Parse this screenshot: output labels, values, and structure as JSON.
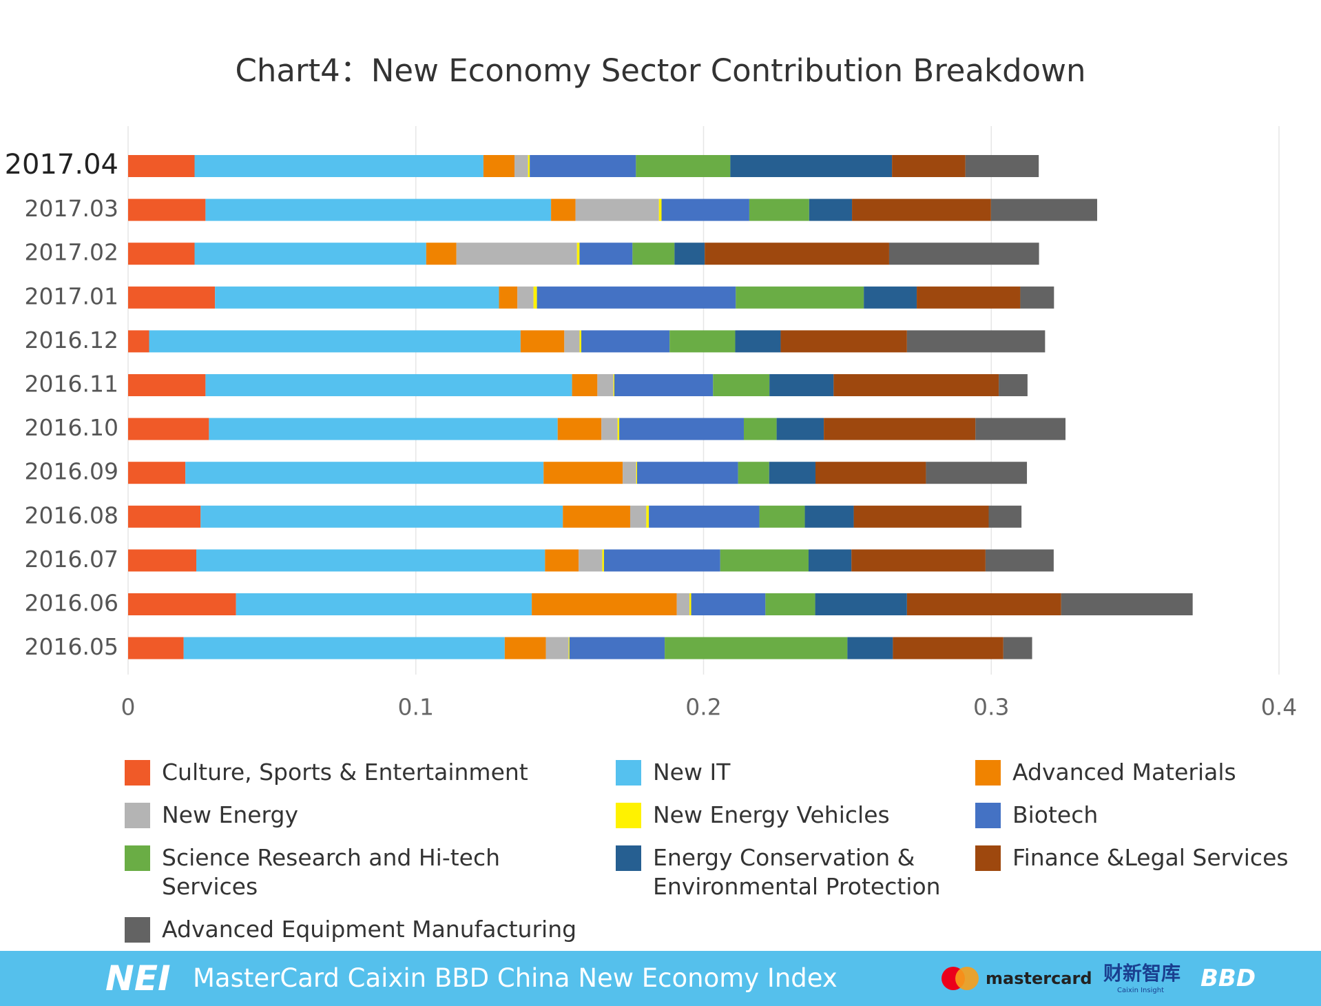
{
  "chart_data": {
    "type": "bar",
    "orientation": "horizontal",
    "stacked": true,
    "title": "Chart4：New Economy Sector Contribution Breakdown",
    "categories": [
      "2017.04",
      "2017.03",
      "2017.02",
      "2017.01",
      "2016.12",
      "2016.11",
      "2016.10",
      "2016.09",
      "2016.08",
      "2016.07",
      "2016.06",
      "2016.05"
    ],
    "xlim": [
      0,
      0.4
    ],
    "xticks": [
      0,
      0.1,
      0.2,
      0.3,
      0.4
    ],
    "grid": true,
    "series": [
      {
        "name": "Culture, Sports & Entertainment",
        "color": "#f05a28",
        "values": [
          0.0231,
          0.0269,
          0.0231,
          0.0302,
          0.0073,
          0.0269,
          0.0281,
          0.0199,
          0.0252,
          0.0237,
          0.0375,
          0.0193
        ]
      },
      {
        "name": "New IT",
        "color": "#55c1ef",
        "values": [
          0.1004,
          0.1201,
          0.0805,
          0.0987,
          0.1291,
          0.1274,
          0.1212,
          0.1245,
          0.1259,
          0.1212,
          0.1028,
          0.1116
        ]
      },
      {
        "name": "Advanced Materials",
        "color": "#f08300",
        "values": [
          0.0108,
          0.0085,
          0.0105,
          0.0064,
          0.0152,
          0.0088,
          0.0152,
          0.0275,
          0.0234,
          0.0117,
          0.0504,
          0.0143
        ]
      },
      {
        "name": "New Energy",
        "color": "#b4b4b4",
        "values": [
          0.0047,
          0.029,
          0.0419,
          0.0056,
          0.0053,
          0.0056,
          0.0056,
          0.0047,
          0.0056,
          0.0082,
          0.0044,
          0.0079
        ]
      },
      {
        "name": "New Energy Vehicles",
        "color": "#fff200",
        "values": [
          0.0006,
          0.0009,
          0.0009,
          0.0012,
          0.0006,
          0.0003,
          0.0006,
          0.0003,
          0.0009,
          0.0006,
          0.0006,
          0.0003
        ]
      },
      {
        "name": "Biotech",
        "color": "#4472c4",
        "values": [
          0.0369,
          0.0305,
          0.0184,
          0.0691,
          0.0307,
          0.0343,
          0.0433,
          0.0351,
          0.0384,
          0.0404,
          0.0258,
          0.0331
        ]
      },
      {
        "name": "Science Research and Hi-tech Services",
        "color": "#6aad45",
        "values": [
          0.0328,
          0.0208,
          0.0146,
          0.0445,
          0.0228,
          0.0196,
          0.0114,
          0.0108,
          0.0158,
          0.0307,
          0.0173,
          0.0635
        ]
      },
      {
        "name": "Energy Conservation & Environmental Protection",
        "color": "#265f91",
        "values": [
          0.0562,
          0.0149,
          0.0105,
          0.0184,
          0.0158,
          0.0223,
          0.0164,
          0.0161,
          0.017,
          0.0149,
          0.0319,
          0.0158
        ]
      },
      {
        "name": "Finance &Legal Services",
        "color": "#9e480e",
        "values": [
          0.0255,
          0.0483,
          0.0641,
          0.036,
          0.0439,
          0.0574,
          0.0527,
          0.0384,
          0.0469,
          0.0466,
          0.0536,
          0.0384
        ]
      },
      {
        "name": "Advanced Equipment Manufacturing",
        "color": "#636363",
        "values": [
          0.0255,
          0.0369,
          0.0521,
          0.0117,
          0.048,
          0.01,
          0.0313,
          0.0351,
          0.0114,
          0.0237,
          0.0457,
          0.01
        ]
      }
    ]
  },
  "footer": {
    "logo": "NEI",
    "text": "MasterCard Caixin BBD China New Economy Index",
    "partners": [
      "mastercard",
      "财新智库",
      "Caixin Insight",
      "BBD"
    ]
  }
}
